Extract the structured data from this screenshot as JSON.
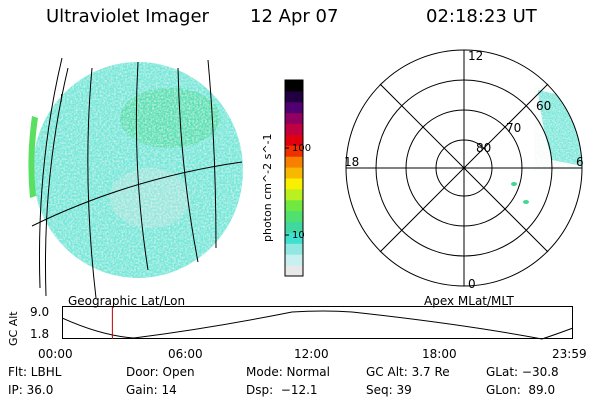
{
  "header": {
    "title": "Ultraviolet Imager",
    "date": "12 Apr 07",
    "time": "02:18:23 UT"
  },
  "colorbar": {
    "label": "photon cm^-2 s^-1",
    "ticks": [
      {
        "label": "100",
        "value": 100
      },
      {
        "label": "10",
        "value": 10
      }
    ],
    "colors": [
      "#e8e8e8",
      "#c8f0f0",
      "#90e8e0",
      "#40e0d0",
      "#40d8a0",
      "#50e070",
      "#70e840",
      "#b8f020",
      "#f8f000",
      "#f8b800",
      "#f88000",
      "#f03000",
      "#e00010",
      "#c00040",
      "#900060",
      "#500070",
      "#200040",
      "#000000"
    ]
  },
  "left_panel": {
    "caption": "Geographic Lat/Lon",
    "colors": {
      "low": "#d8e4e4",
      "mid": "#70e8d8",
      "high": "#40d890",
      "peak": "#5ae060"
    }
  },
  "right_panel": {
    "caption": "Apex MLat/MLT",
    "mlt_labels": {
      "top": "12",
      "left": "18",
      "right": "6",
      "bottom": "0"
    },
    "lat_labels": [
      "80",
      "70",
      "60"
    ]
  },
  "timeline": {
    "ylabel": "GC Alt",
    "y_ticks": [
      "9.0",
      "1.8"
    ],
    "x_ticks": [
      "00:00",
      "06:00",
      "12:00",
      "18:00",
      "23:59"
    ],
    "y_range": [
      1.8,
      9.0
    ],
    "current_time_fraction": 0.097,
    "marker_color": "#c00000"
  },
  "status": {
    "row1": {
      "filter": "Flt: LBHL",
      "door": "Door: Open",
      "mode": "Mode: Normal",
      "gc_alt": "GC Alt: 3.7 Re",
      "glat": "GLat: −30.8"
    },
    "row2": {
      "ip": "IP: 36.0",
      "gain": "Gain: 14",
      "dsp": "Dsp:  −12.1",
      "seq": "Seq: 39",
      "glon": "GLon:  89.0"
    }
  }
}
